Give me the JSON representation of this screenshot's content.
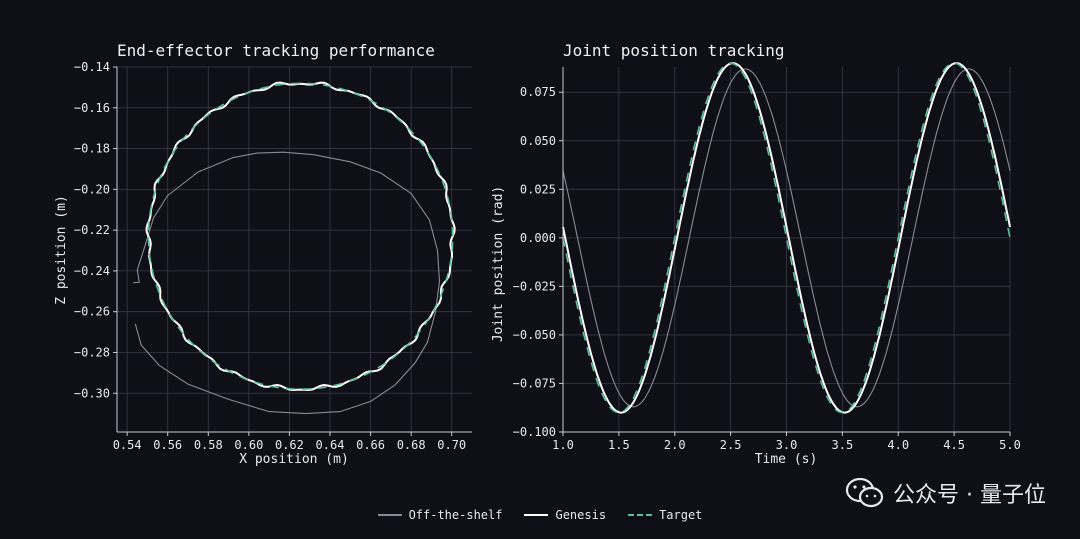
{
  "chart_data": [
    {
      "type": "line",
      "title": "End-effector tracking performance",
      "xlabel": "X position (m)",
      "ylabel": "Z position (m)",
      "xlim": [
        0.535,
        0.71
      ],
      "ylim": [
        -0.319,
        -0.14
      ],
      "xticks": [
        "0.54",
        "0.56",
        "0.58",
        "0.60",
        "0.62",
        "0.64",
        "0.66",
        "0.68",
        "0.70"
      ],
      "yticks": [
        "-0.14",
        "-0.16",
        "-0.18",
        "-0.20",
        "-0.22",
        "-0.24",
        "-0.26",
        "-0.28",
        "-0.30"
      ],
      "grid": true,
      "series": [
        {
          "name": "Off-the-shelf",
          "color": "#8a8a94",
          "x": [
            0.543,
            0.546,
            0.545,
            0.549,
            0.553,
            0.56,
            0.575,
            0.592,
            0.604,
            0.617,
            0.632,
            0.65,
            0.665,
            0.68,
            0.689,
            0.693,
            0.694,
            0.692,
            0.688,
            0.682,
            0.672,
            0.66,
            0.645,
            0.628,
            0.61,
            0.59,
            0.57,
            0.556,
            0.547,
            0.544
          ],
          "y": [
            -0.2458,
            -0.2456,
            -0.2395,
            -0.227,
            -0.214,
            -0.203,
            -0.1915,
            -0.1845,
            -0.1822,
            -0.1818,
            -0.183,
            -0.1865,
            -0.192,
            -0.202,
            -0.215,
            -0.23,
            -0.245,
            -0.26,
            -0.275,
            -0.285,
            -0.296,
            -0.304,
            -0.309,
            -0.31,
            -0.309,
            -0.303,
            -0.2955,
            -0.2865,
            -0.2765,
            -0.266
          ]
        },
        {
          "name": "Genesis",
          "color": "#ffffff",
          "circle": {
            "cx": 0.6255,
            "cz": -0.223,
            "r": 0.075
          }
        },
        {
          "name": "Target",
          "color": "#5fbf9a",
          "dashed": true,
          "circle": {
            "cx": 0.6255,
            "cz": -0.223,
            "r": 0.075
          }
        }
      ]
    },
    {
      "type": "line",
      "title": "Joint position tracking",
      "xlabel": "Time (s)",
      "ylabel": "Joint position (rad)",
      "xlim": [
        1.0,
        5.0
      ],
      "ylim": [
        -0.1,
        0.088
      ],
      "xticks": [
        "1.0",
        "1.5",
        "2.0",
        "2.5",
        "3.0",
        "3.5",
        "4.0",
        "4.5",
        "5.0"
      ],
      "yticks": [
        "0.075",
        "0.050",
        "0.025",
        "0.000",
        "-0.025",
        "-0.050",
        "-0.075",
        "-0.100"
      ],
      "grid": true,
      "series": [
        {
          "name": "Off-the-shelf",
          "color": "#8a8a94",
          "amplitude": 0.087,
          "period": 2.0,
          "phase_delay": 0.13
        },
        {
          "name": "Genesis",
          "color": "#ffffff",
          "amplitude": 0.09,
          "period": 2.0,
          "phase_delay": 0.02
        },
        {
          "name": "Target",
          "color": "#5fbf9a",
          "dashed": true,
          "amplitude": 0.09,
          "period": 2.0,
          "phase_delay": 0.0
        }
      ]
    }
  ],
  "legend": [
    {
      "label": "Off-the-shelf",
      "color": "#8a8a94",
      "dashed": false
    },
    {
      "label": "Genesis",
      "color": "#ffffff",
      "dashed": false
    },
    {
      "label": "Target",
      "color": "#5fbf9a",
      "dashed": true
    }
  ],
  "watermark": {
    "text": "公众号 · 量子位",
    "icon": "wechat-icon"
  },
  "colors": {
    "background": "#0f0f18",
    "grid": "#3a3a46"
  }
}
